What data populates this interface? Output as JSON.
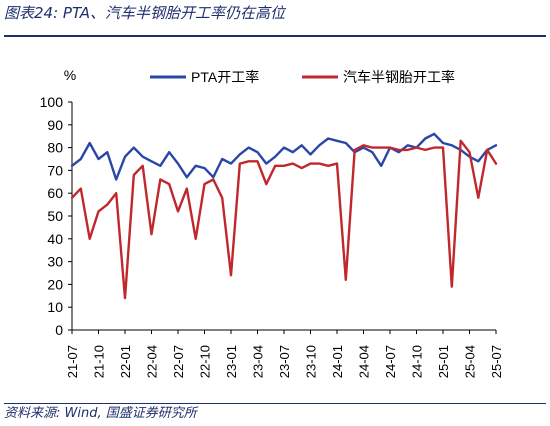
{
  "title": "图表24:  PTA、汽车半钢胎开工率仍在高位",
  "source": "资料来源:  Wind,  国盛证券研究所",
  "chart_data": {
    "type": "line",
    "ylabel": "%",
    "ylim": [
      0,
      100
    ],
    "yticks": [
      0,
      10,
      20,
      30,
      40,
      50,
      60,
      70,
      80,
      90,
      100
    ],
    "xlim": [
      "2021-07",
      "2025-07"
    ],
    "xticks": [
      "21-07",
      "21-10",
      "22-01",
      "22-04",
      "22-07",
      "22-10",
      "23-01",
      "23-04",
      "23-07",
      "23-10",
      "24-01",
      "24-04",
      "24-07",
      "24-10",
      "25-01",
      "25-04",
      "25-07"
    ],
    "legend_position": "top",
    "grid": false,
    "series": [
      {
        "name": "PTA开工率",
        "color": "#2a47a8",
        "points": [
          [
            "2021-07",
            72
          ],
          [
            "2021-08",
            75
          ],
          [
            "2021-09",
            82
          ],
          [
            "2021-10",
            75
          ],
          [
            "2021-11",
            78
          ],
          [
            "2021-12",
            66
          ],
          [
            "2022-01",
            76
          ],
          [
            "2022-02",
            80
          ],
          [
            "2022-03",
            76
          ],
          [
            "2022-04",
            74
          ],
          [
            "2022-05",
            72
          ],
          [
            "2022-06",
            78
          ],
          [
            "2022-07",
            73
          ],
          [
            "2022-08",
            67
          ],
          [
            "2022-09",
            72
          ],
          [
            "2022-10",
            71
          ],
          [
            "2022-11",
            67
          ],
          [
            "2022-12",
            75
          ],
          [
            "2023-01",
            73
          ],
          [
            "2023-02",
            77
          ],
          [
            "2023-03",
            80
          ],
          [
            "2023-04",
            78
          ],
          [
            "2023-05",
            73
          ],
          [
            "2023-06",
            76
          ],
          [
            "2023-07",
            80
          ],
          [
            "2023-08",
            78
          ],
          [
            "2023-09",
            81
          ],
          [
            "2023-10",
            77
          ],
          [
            "2023-11",
            81
          ],
          [
            "2023-12",
            84
          ],
          [
            "2024-01",
            83
          ],
          [
            "2024-02",
            82
          ],
          [
            "2024-03",
            78
          ],
          [
            "2024-04",
            80
          ],
          [
            "2024-05",
            78
          ],
          [
            "2024-06",
            72
          ],
          [
            "2024-07",
            80
          ],
          [
            "2024-08",
            78
          ],
          [
            "2024-09",
            81
          ],
          [
            "2024-10",
            80
          ],
          [
            "2024-11",
            84
          ],
          [
            "2024-12",
            86
          ],
          [
            "2025-01",
            82
          ],
          [
            "2025-02",
            81
          ],
          [
            "2025-03",
            79
          ],
          [
            "2025-04",
            76
          ],
          [
            "2025-05",
            74
          ],
          [
            "2025-06",
            79
          ],
          [
            "2025-07",
            81
          ]
        ]
      },
      {
        "name": "汽车半钢胎开工率",
        "color": "#c0282d",
        "points": [
          [
            "2021-07",
            58
          ],
          [
            "2021-08",
            62
          ],
          [
            "2021-09",
            40
          ],
          [
            "2021-10",
            52
          ],
          [
            "2021-11",
            55
          ],
          [
            "2021-12",
            60
          ],
          [
            "2022-01",
            14
          ],
          [
            "2022-02",
            68
          ],
          [
            "2022-03",
            72
          ],
          [
            "2022-04",
            42
          ],
          [
            "2022-05",
            66
          ],
          [
            "2022-06",
            64
          ],
          [
            "2022-07",
            52
          ],
          [
            "2022-08",
            62
          ],
          [
            "2022-09",
            40
          ],
          [
            "2022-10",
            64
          ],
          [
            "2022-11",
            66
          ],
          [
            "2022-12",
            58
          ],
          [
            "2023-01",
            24
          ],
          [
            "2023-02",
            73
          ],
          [
            "2023-03",
            74
          ],
          [
            "2023-04",
            74
          ],
          [
            "2023-05",
            64
          ],
          [
            "2023-06",
            72
          ],
          [
            "2023-07",
            72
          ],
          [
            "2023-08",
            73
          ],
          [
            "2023-09",
            71
          ],
          [
            "2023-10",
            73
          ],
          [
            "2023-11",
            73
          ],
          [
            "2023-12",
            72
          ],
          [
            "2024-01",
            73
          ],
          [
            "2024-02",
            22
          ],
          [
            "2024-03",
            79
          ],
          [
            "2024-04",
            81
          ],
          [
            "2024-05",
            80
          ],
          [
            "2024-06",
            80
          ],
          [
            "2024-07",
            80
          ],
          [
            "2024-08",
            79
          ],
          [
            "2024-09",
            79
          ],
          [
            "2024-10",
            80
          ],
          [
            "2024-11",
            79
          ],
          [
            "2024-12",
            80
          ],
          [
            "2025-01",
            80
          ],
          [
            "2025-02",
            19
          ],
          [
            "2025-03",
            83
          ],
          [
            "2025-04",
            78
          ],
          [
            "2025-05",
            58
          ],
          [
            "2025-06",
            79
          ],
          [
            "2025-07",
            73
          ]
        ]
      }
    ]
  }
}
